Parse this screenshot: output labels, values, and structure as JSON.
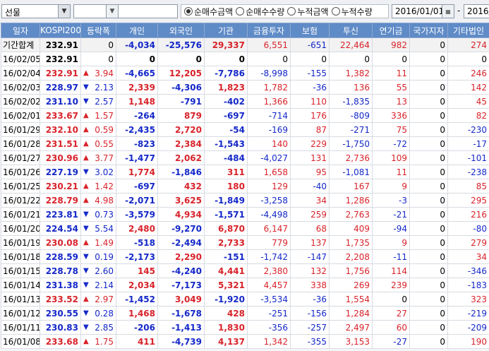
{
  "toolbar": {
    "market_select": "선물",
    "radio_options": [
      {
        "label": "순매수금액",
        "selected": true
      },
      {
        "label": "순매수수량",
        "selected": false
      },
      {
        "label": "누적금액",
        "selected": false
      },
      {
        "label": "누적수량",
        "selected": false
      }
    ],
    "start_date": "2016/01/01",
    "end_date": "2016/"
  },
  "columns": [
    "일자",
    "KOSPI200",
    "등락폭",
    "개인",
    "외국인",
    "기관",
    "금융투자",
    "보험",
    "투신",
    "연기금",
    "국가지자",
    "기타법인"
  ],
  "summary": {
    "date": "기간합계",
    "kospi": "232.91",
    "chg": "0",
    "vals": [
      "-4,034",
      "-25,576",
      "29,337",
      "6,551",
      "-651",
      "22,464",
      "982",
      "0",
      "274"
    ]
  },
  "rows": [
    {
      "date": "16/02/05",
      "kospi": "232.91",
      "dir": "none",
      "chg": "0",
      "vals": [
        "0",
        "0",
        "0",
        "0",
        "0",
        "0",
        "0",
        "0",
        "0"
      ]
    },
    {
      "date": "16/02/04",
      "kospi": "232.91",
      "dir": "up",
      "chg": "3.94",
      "vals": [
        "-4,665",
        "12,205",
        "-7,786",
        "-8,998",
        "-155",
        "1,382",
        "11",
        "0",
        "246"
      ]
    },
    {
      "date": "16/02/03",
      "kospi": "228.97",
      "dir": "down",
      "chg": "2.13",
      "vals": [
        "2,339",
        "-4,306",
        "1,823",
        "1,782",
        "-36",
        "136",
        "55",
        "0",
        "142"
      ]
    },
    {
      "date": "16/02/02",
      "kospi": "231.10",
      "dir": "down",
      "chg": "2.57",
      "vals": [
        "1,148",
        "-791",
        "-402",
        "1,366",
        "110",
        "-1,835",
        "13",
        "0",
        "45"
      ]
    },
    {
      "date": "16/02/01",
      "kospi": "233.67",
      "dir": "up",
      "chg": "1.57",
      "vals": [
        "-264",
        "879",
        "-697",
        "-714",
        "176",
        "-809",
        "336",
        "0",
        "82"
      ]
    },
    {
      "date": "16/01/29",
      "kospi": "232.10",
      "dir": "up",
      "chg": "0.59",
      "vals": [
        "-2,435",
        "2,720",
        "-54",
        "-169",
        "87",
        "-271",
        "75",
        "0",
        "-230"
      ]
    },
    {
      "date": "16/01/28",
      "kospi": "231.51",
      "dir": "up",
      "chg": "0.55",
      "vals": [
        "-823",
        "2,384",
        "-1,543",
        "140",
        "229",
        "-1,750",
        "-72",
        "0",
        "-17"
      ]
    },
    {
      "date": "16/01/27",
      "kospi": "230.96",
      "dir": "up",
      "chg": "3.77",
      "vals": [
        "-1,477",
        "2,062",
        "-484",
        "-4,027",
        "131",
        "2,736",
        "109",
        "0",
        "-101"
      ]
    },
    {
      "date": "16/01/26",
      "kospi": "227.19",
      "dir": "down",
      "chg": "3.02",
      "vals": [
        "1,774",
        "-1,846",
        "311",
        "1,658",
        "95",
        "-1,081",
        "11",
        "0",
        "-238"
      ]
    },
    {
      "date": "16/01/25",
      "kospi": "230.21",
      "dir": "up",
      "chg": "1.42",
      "vals": [
        "-697",
        "432",
        "180",
        "129",
        "-40",
        "167",
        "9",
        "0",
        "85"
      ]
    },
    {
      "date": "16/01/22",
      "kospi": "228.79",
      "dir": "up",
      "chg": "4.98",
      "vals": [
        "-2,071",
        "3,625",
        "-1,849",
        "-3,258",
        "34",
        "1,286",
        "-3",
        "0",
        "295"
      ]
    },
    {
      "date": "16/01/21",
      "kospi": "223.81",
      "dir": "down",
      "chg": "0.73",
      "vals": [
        "-3,579",
        "4,934",
        "-1,571",
        "-4,498",
        "259",
        "2,763",
        "-21",
        "0",
        "216"
      ]
    },
    {
      "date": "16/01/20",
      "kospi": "224.54",
      "dir": "down",
      "chg": "5.54",
      "vals": [
        "2,480",
        "-9,270",
        "6,870",
        "6,147",
        "68",
        "409",
        "-94",
        "0",
        "-80"
      ]
    },
    {
      "date": "16/01/19",
      "kospi": "230.08",
      "dir": "up",
      "chg": "1.49",
      "vals": [
        "-518",
        "-2,494",
        "2,733",
        "779",
        "137",
        "1,735",
        "9",
        "0",
        "279"
      ]
    },
    {
      "date": "16/01/18",
      "kospi": "228.59",
      "dir": "down",
      "chg": "0.19",
      "vals": [
        "-2,173",
        "2,290",
        "-151",
        "-1,742",
        "-147",
        "2,208",
        "-11",
        "0",
        "34"
      ]
    },
    {
      "date": "16/01/15",
      "kospi": "228.78",
      "dir": "down",
      "chg": "2.60",
      "vals": [
        "145",
        "-4,240",
        "4,441",
        "2,380",
        "132",
        "1,756",
        "114",
        "0",
        "-346"
      ]
    },
    {
      "date": "16/01/14",
      "kospi": "231.38",
      "dir": "down",
      "chg": "2.14",
      "vals": [
        "2,034",
        "-7,173",
        "5,321",
        "4,457",
        "338",
        "269",
        "239",
        "0",
        "-183"
      ]
    },
    {
      "date": "16/01/13",
      "kospi": "233.52",
      "dir": "up",
      "chg": "2.97",
      "vals": [
        "-1,452",
        "3,049",
        "-1,920",
        "-3,534",
        "-36",
        "1,554",
        "0",
        "0",
        "323"
      ]
    },
    {
      "date": "16/01/12",
      "kospi": "230.55",
      "dir": "down",
      "chg": "0.28",
      "vals": [
        "1,468",
        "-1,678",
        "428",
        "-251",
        "-156",
        "1,284",
        "27",
        "0",
        "-219"
      ]
    },
    {
      "date": "16/01/11",
      "kospi": "230.83",
      "dir": "down",
      "chg": "2.85",
      "vals": [
        "-206",
        "-1,413",
        "1,830",
        "-356",
        "-257",
        "2,497",
        "60",
        "0",
        "-209"
      ]
    },
    {
      "date": "16/01/08",
      "kospi": "233.68",
      "dir": "up",
      "chg": "1.75",
      "vals": [
        "411",
        "-4,739",
        "4,137",
        "1,342",
        "-355",
        "3,153",
        "-27",
        "0",
        "190"
      ]
    }
  ],
  "colors": {
    "header_bg": "#5f8bc7",
    "up": "#d8232a",
    "down": "#1428c8"
  }
}
